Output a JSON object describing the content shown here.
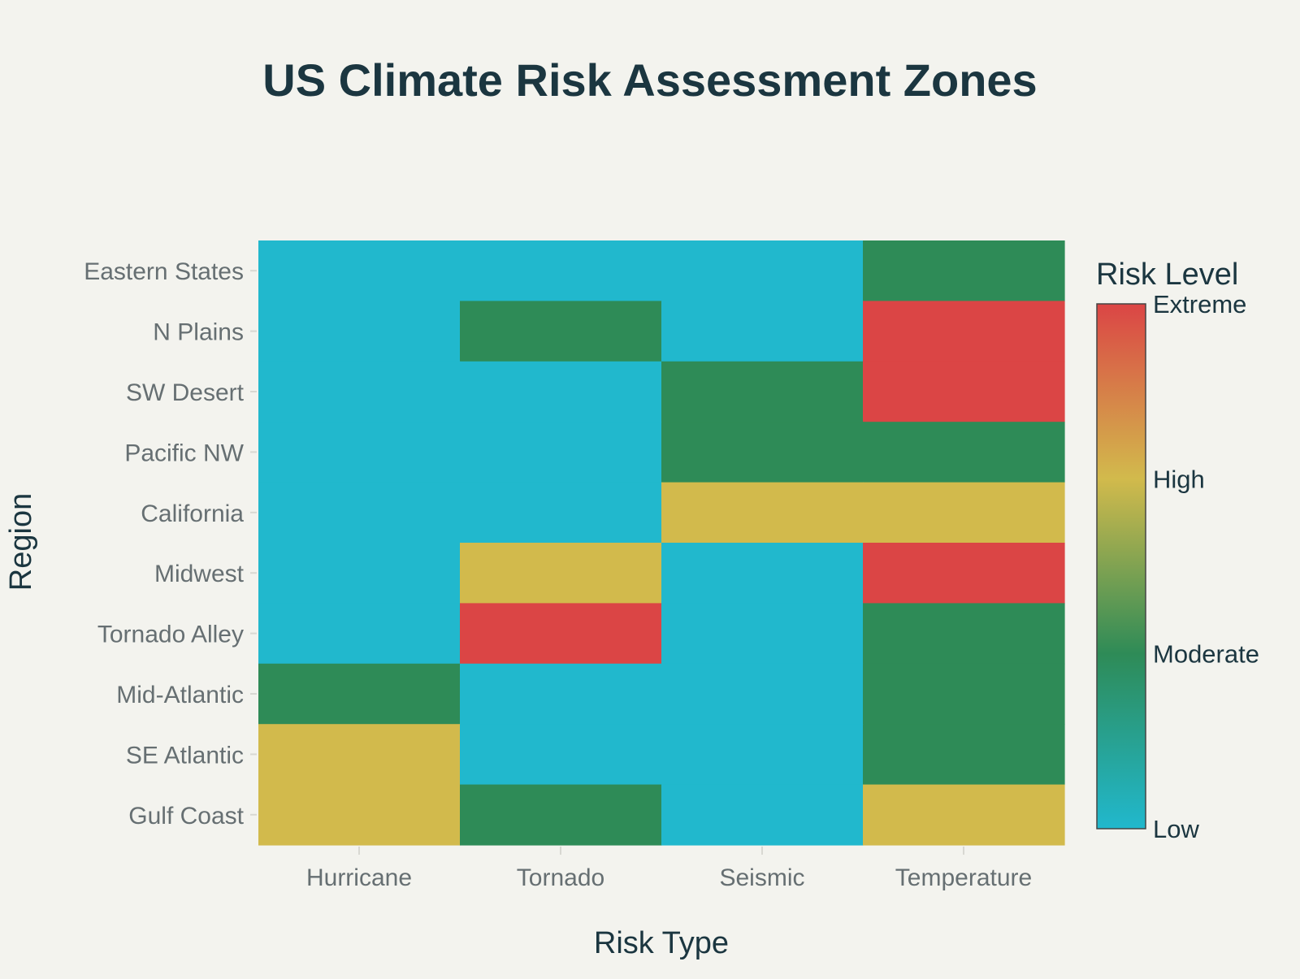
{
  "chart_data": {
    "type": "heatmap",
    "title": "US Climate Risk Assessment Zones",
    "xlabel": "Risk Type",
    "ylabel": "Region",
    "x_categories": [
      "Hurricane",
      "Tornado",
      "Seismic",
      "Temperature"
    ],
    "y_categories_top_to_bottom": [
      "Eastern States",
      "N Plains",
      "SW Desert",
      "Pacific NW",
      "California",
      "Midwest",
      "Tornado Alley",
      "Mid-Atlantic",
      "SE Atlantic",
      "Gulf Coast"
    ],
    "z": [
      [
        0,
        0,
        0,
        1
      ],
      [
        0,
        1,
        0,
        3
      ],
      [
        0,
        0,
        1,
        3
      ],
      [
        0,
        0,
        1,
        1
      ],
      [
        0,
        0,
        2,
        2
      ],
      [
        0,
        2,
        0,
        3
      ],
      [
        0,
        3,
        0,
        1
      ],
      [
        1,
        0,
        0,
        1
      ],
      [
        2,
        0,
        0,
        1
      ],
      [
        2,
        1,
        0,
        2
      ]
    ],
    "zlim": [
      0,
      3
    ],
    "colorscale": [
      [
        0,
        "#21B8CD"
      ],
      [
        0.333,
        "#2E8B57"
      ],
      [
        0.667,
        "#D2BA4C"
      ],
      [
        1,
        "#DB4545"
      ]
    ],
    "colorbar": {
      "title": "Risk Level",
      "tickvals": [
        0,
        1,
        2,
        3
      ],
      "ticktext": [
        "Low",
        "Moderate",
        "High",
        "Extreme"
      ]
    },
    "grid": false
  }
}
